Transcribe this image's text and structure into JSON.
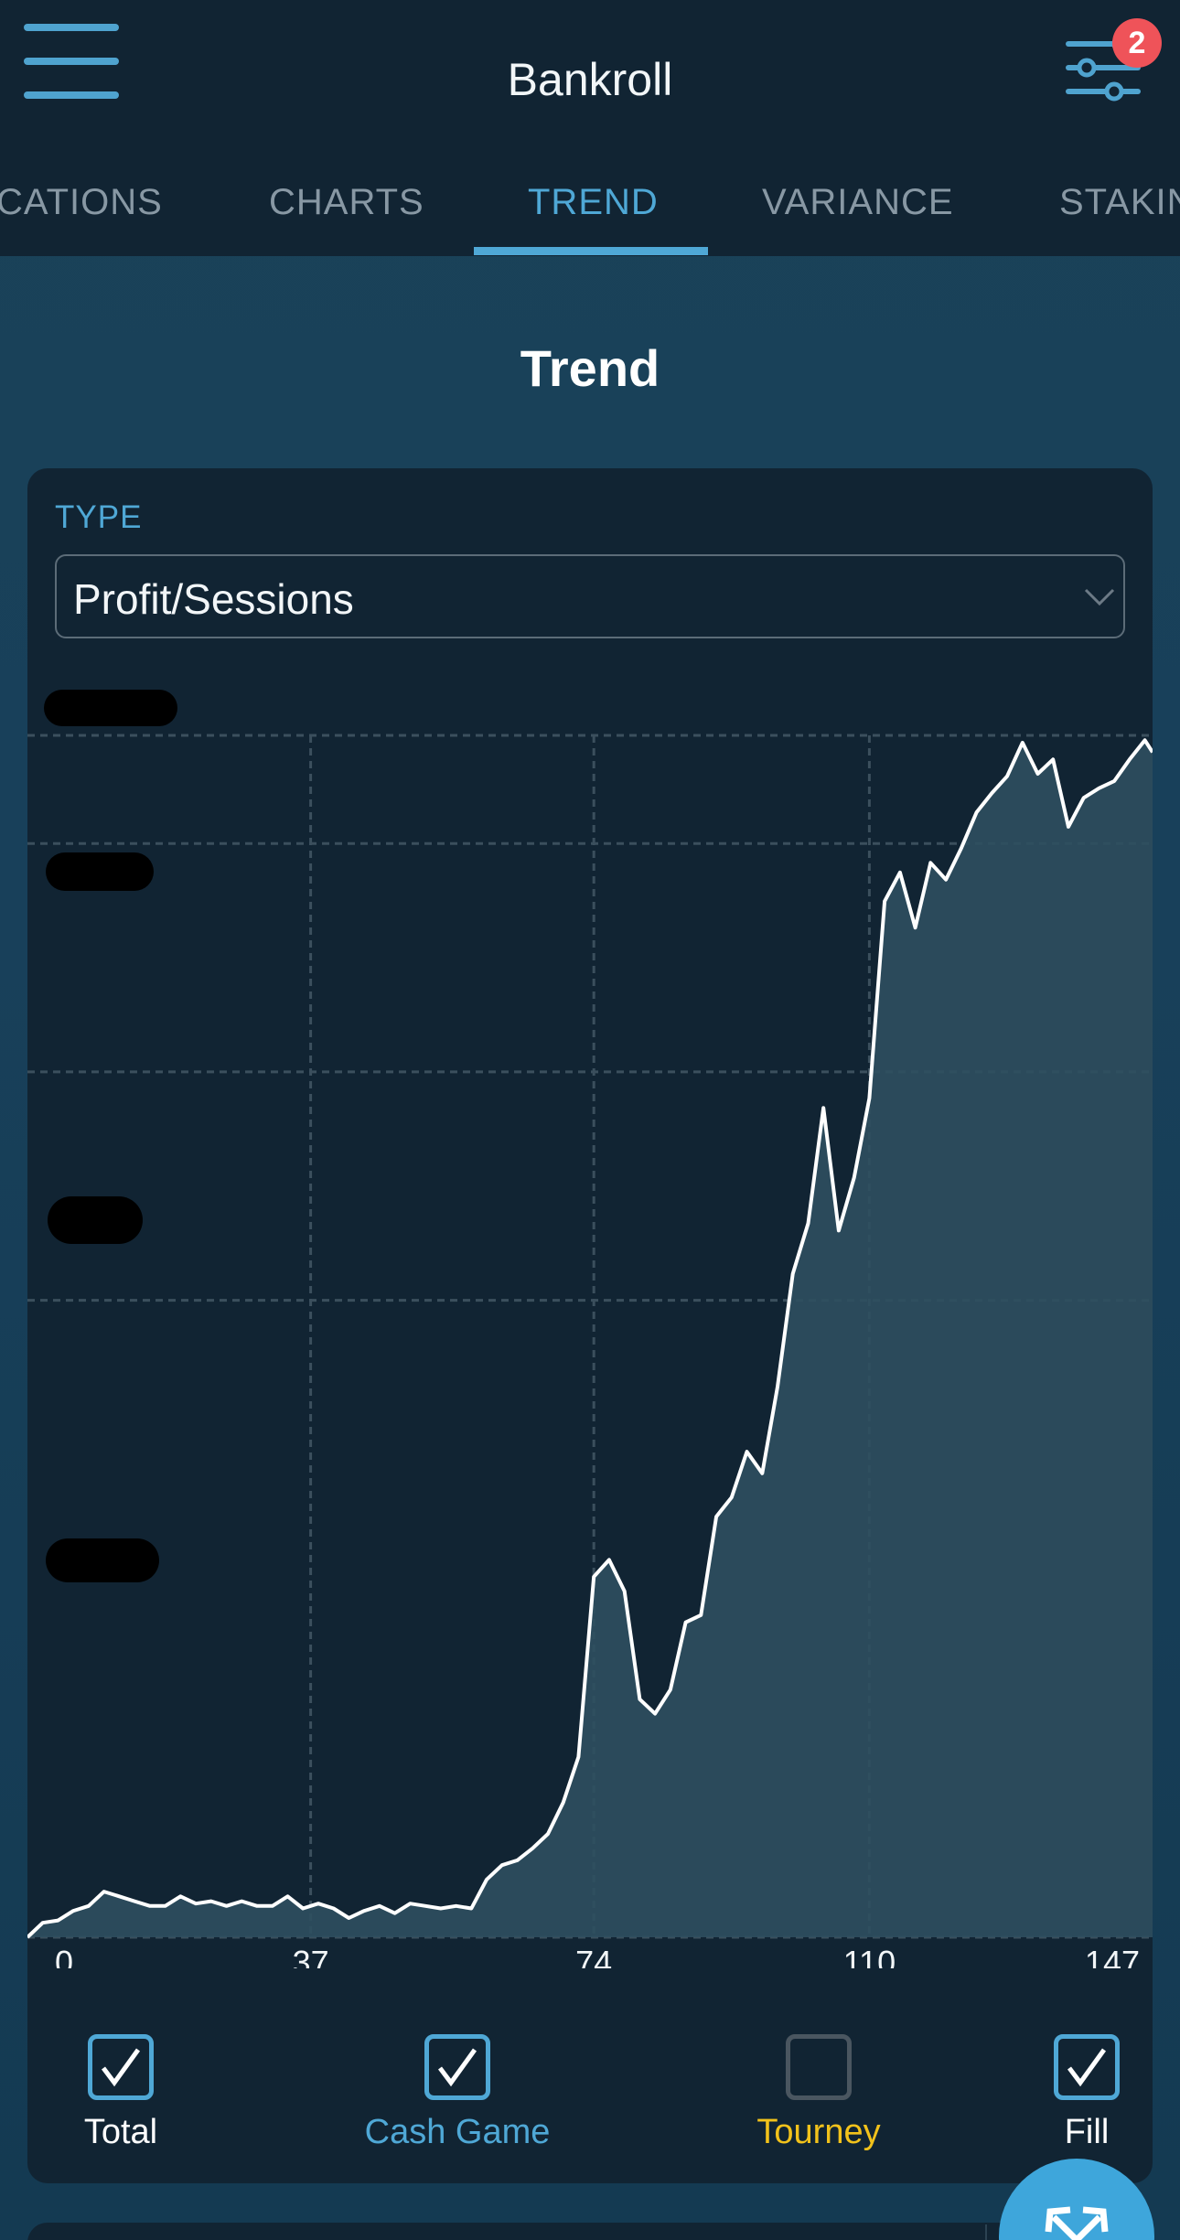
{
  "header": {
    "title": "Bankroll",
    "filter_badge": "2"
  },
  "tabs": [
    {
      "label": "CATIONS",
      "active": false
    },
    {
      "label": "CHARTS",
      "active": false
    },
    {
      "label": "TREND",
      "active": true
    },
    {
      "label": "VARIANCE",
      "active": false
    },
    {
      "label": "STAKIN",
      "active": false
    }
  ],
  "section_title": "Trend",
  "type_field": {
    "label": "TYPE",
    "value": "Profit/Sessions"
  },
  "chart_data": {
    "type": "area",
    "x_ticks": [
      "0",
      "37",
      "74",
      "110",
      "147"
    ],
    "xlim": [
      0,
      147
    ],
    "y_tick_labels_redacted": true,
    "ylim_relative": [
      0,
      100
    ],
    "grid": true,
    "fill": true,
    "series": [
      {
        "x": [
          0,
          2,
          4,
          6,
          8,
          10,
          12,
          14,
          16,
          18,
          20,
          22,
          24,
          26,
          28,
          30,
          32,
          34,
          36,
          38,
          40,
          42,
          44,
          46,
          48,
          50,
          52,
          54,
          56,
          58,
          60,
          62,
          64,
          66,
          68,
          70,
          72,
          74,
          76,
          78,
          80,
          82,
          84,
          86,
          88,
          90,
          92,
          94,
          96,
          98,
          100,
          102,
          104,
          106,
          108,
          110,
          112,
          114,
          116,
          118,
          120,
          122,
          124,
          126,
          128,
          130,
          132,
          134,
          136,
          138,
          140,
          142,
          144,
          146,
          147
        ],
        "values": [
          0.0,
          1.2,
          1.4,
          2.2,
          2.6,
          3.8,
          3.4,
          3.0,
          2.6,
          2.6,
          3.4,
          2.8,
          3.0,
          2.6,
          3.0,
          2.6,
          2.6,
          3.4,
          2.4,
          2.8,
          2.4,
          1.6,
          2.2,
          2.6,
          2.0,
          2.8,
          2.6,
          2.4,
          2.6,
          2.4,
          4.8,
          6.0,
          6.4,
          7.4,
          8.6,
          11.2,
          15.0,
          30.0,
          31.4,
          28.8,
          19.8,
          18.6,
          20.6,
          26.2,
          26.8,
          35.0,
          36.6,
          40.4,
          38.6,
          45.8,
          55.2,
          59.4,
          69.0,
          58.8,
          63.2,
          69.8,
          86.2,
          88.6,
          84.0,
          89.4,
          88.0,
          90.6,
          93.6,
          95.2,
          96.6,
          99.4,
          96.8,
          98.0,
          92.4,
          94.8,
          95.6,
          96.2,
          98.0,
          99.6,
          98.6
        ]
      }
    ]
  },
  "toggles": [
    {
      "label": "Total",
      "checked": true,
      "color": "#ffffff"
    },
    {
      "label": "Cash Game",
      "checked": true,
      "color": "#4fa8d6"
    },
    {
      "label": "Tourney",
      "checked": false,
      "color": "#f2c21b"
    },
    {
      "label": "Fill",
      "checked": true,
      "color": "#ffffff"
    }
  ],
  "colors": {
    "accent": "#4fa8d6",
    "badge": "#ef5359",
    "tourney": "#f2c21b",
    "fill": "#2f4f5f",
    "line": "#ffffff",
    "card": "#112433"
  },
  "icons": {
    "menu": "hamburger-icon",
    "filter": "sliders-icon",
    "select": "chevron-down-icon",
    "fab": "expand-arrows-icon"
  }
}
